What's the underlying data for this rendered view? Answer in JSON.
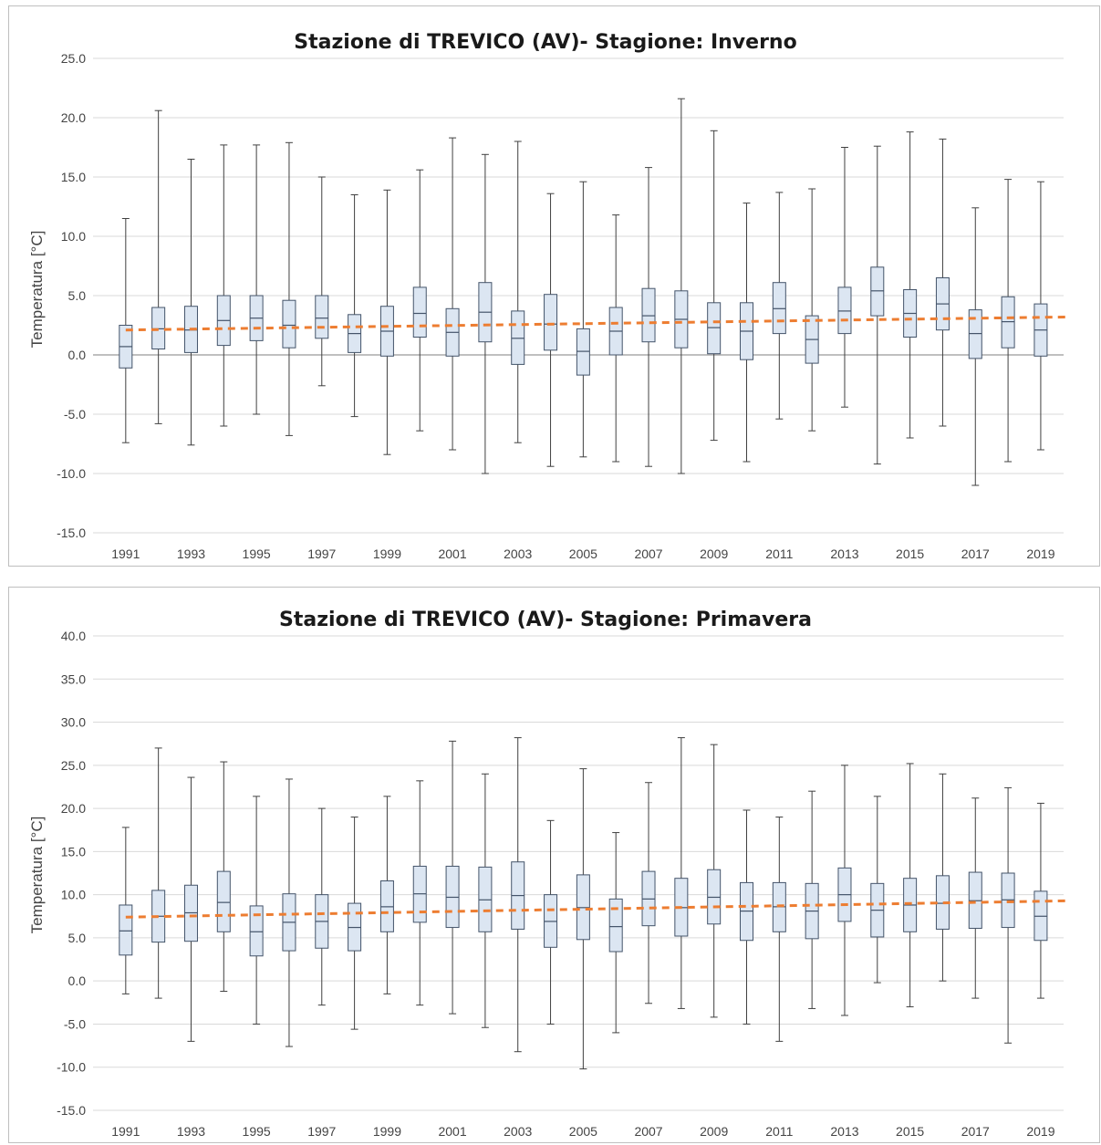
{
  "chart_data": [
    {
      "type": "box",
      "title": "Stazione di TREVICO (AV)- Stagione: Inverno",
      "xlabel": "",
      "ylabel": "Temperatura [°C]",
      "ylim": [
        -15,
        25
      ],
      "ytick_step": 5,
      "x_tick_labels": [
        "1991",
        "1993",
        "1995",
        "1997",
        "1999",
        "2001",
        "2003",
        "2005",
        "2007",
        "2009",
        "2011",
        "2013",
        "2015",
        "2017",
        "2019"
      ],
      "grid": "horizontal",
      "colors": {
        "box_fill": "#dce6f2",
        "box_edge": "#44546a",
        "whisker": "#404040",
        "trend": "#ed7d31",
        "grid": "#d9d9d9",
        "zero_line": "#7f7f7f"
      },
      "years": [
        1991,
        1992,
        1993,
        1994,
        1995,
        1996,
        1997,
        1998,
        1999,
        2000,
        2001,
        2002,
        2003,
        2004,
        2005,
        2006,
        2007,
        2008,
        2009,
        2010,
        2011,
        2012,
        2013,
        2014,
        2015,
        2016,
        2017,
        2018,
        2019
      ],
      "min": [
        -7.4,
        -5.8,
        -7.6,
        -6.0,
        -5.0,
        -6.8,
        -2.6,
        -5.2,
        -8.4,
        -6.4,
        -8.0,
        -10.0,
        -7.4,
        -9.4,
        -8.6,
        -9.0,
        -9.4,
        -10.0,
        -7.2,
        -9.0,
        -5.4,
        -6.4,
        -4.4,
        -9.2,
        -7.0,
        -6.0,
        -11.0,
        -9.0,
        -8.0
      ],
      "q1": [
        -1.1,
        0.5,
        0.2,
        0.8,
        1.2,
        0.6,
        1.4,
        0.2,
        -0.1,
        1.5,
        -0.1,
        1.1,
        -0.8,
        0.4,
        -1.7,
        0.0,
        1.1,
        0.6,
        0.1,
        -0.4,
        1.8,
        -0.7,
        1.8,
        3.3,
        1.5,
        2.1,
        -0.3,
        0.6,
        -0.1
      ],
      "median": [
        0.7,
        2.2,
        2.1,
        2.9,
        3.1,
        2.5,
        3.1,
        1.8,
        2.0,
        3.5,
        1.9,
        3.6,
        1.4,
        2.6,
        0.3,
        2.0,
        3.3,
        3.0,
        2.3,
        2.0,
        3.9,
        1.3,
        3.7,
        5.4,
        3.5,
        4.3,
        1.8,
        2.8,
        2.1
      ],
      "q3": [
        2.5,
        4.0,
        4.1,
        5.0,
        5.0,
        4.6,
        5.0,
        3.4,
        4.1,
        5.7,
        3.9,
        6.1,
        3.7,
        5.1,
        2.2,
        4.0,
        5.6,
        5.4,
        4.4,
        4.4,
        6.1,
        3.3,
        5.7,
        7.4,
        5.5,
        6.5,
        3.8,
        4.9,
        4.3
      ],
      "max": [
        11.5,
        20.6,
        16.5,
        17.7,
        17.7,
        17.9,
        15.0,
        13.5,
        13.9,
        15.6,
        18.3,
        16.9,
        18.0,
        13.6,
        14.6,
        11.8,
        15.8,
        21.6,
        18.9,
        12.8,
        13.7,
        14.0,
        17.5,
        17.6,
        18.8,
        18.2,
        12.4,
        14.8,
        14.6
      ],
      "trend": {
        "start": 2.1,
        "end": 3.2
      }
    },
    {
      "type": "box",
      "title": "Stazione di TREVICO (AV)- Stagione: Primavera",
      "xlabel": "",
      "ylabel": "Temperatura [°C]",
      "ylim": [
        -15,
        40
      ],
      "ytick_step": 5,
      "x_tick_labels": [
        "1991",
        "1993",
        "1995",
        "1997",
        "1999",
        "2001",
        "2003",
        "2005",
        "2007",
        "2009",
        "2011",
        "2013",
        "2015",
        "2017",
        "2019"
      ],
      "grid": "horizontal",
      "colors": {
        "box_fill": "#dce6f2",
        "box_edge": "#44546a",
        "whisker": "#404040",
        "trend": "#ed7d31",
        "grid": "#d9d9d9",
        "zero_line": "#d9d9d9"
      },
      "years": [
        1991,
        1992,
        1993,
        1994,
        1995,
        1996,
        1997,
        1998,
        1999,
        2000,
        2001,
        2002,
        2003,
        2004,
        2005,
        2006,
        2007,
        2008,
        2009,
        2010,
        2011,
        2012,
        2013,
        2014,
        2015,
        2016,
        2017,
        2018,
        2019
      ],
      "min": [
        -1.5,
        -2.0,
        -7.0,
        -1.2,
        -5.0,
        -7.6,
        -2.8,
        -5.6,
        -1.5,
        -2.8,
        -3.8,
        -5.4,
        -8.2,
        -5.0,
        -10.2,
        -6.0,
        -2.6,
        -3.2,
        -4.2,
        -5.0,
        -7.0,
        -3.2,
        -4.0,
        -0.2,
        -3.0,
        0.0,
        -2.0,
        -7.2,
        -2.0
      ],
      "q1": [
        3.0,
        4.5,
        4.6,
        5.7,
        2.9,
        3.5,
        3.8,
        3.5,
        5.7,
        6.8,
        6.2,
        5.7,
        6.0,
        3.9,
        4.8,
        3.4,
        6.4,
        5.2,
        6.6,
        4.7,
        5.7,
        4.9,
        6.9,
        5.1,
        5.7,
        6.0,
        6.1,
        6.2,
        4.7
      ],
      "median": [
        5.8,
        7.5,
        7.9,
        9.1,
        5.7,
        6.8,
        6.9,
        6.2,
        8.6,
        10.1,
        9.7,
        9.4,
        9.9,
        6.9,
        8.5,
        6.3,
        9.5,
        8.5,
        9.7,
        8.1,
        8.6,
        8.1,
        10.0,
        8.2,
        8.8,
        9.0,
        9.3,
        9.4,
        7.5
      ],
      "q3": [
        8.8,
        10.5,
        11.1,
        12.7,
        8.7,
        10.1,
        10.0,
        9.0,
        11.6,
        13.3,
        13.3,
        13.2,
        13.8,
        10.0,
        12.3,
        9.5,
        12.7,
        11.9,
        12.9,
        11.4,
        11.4,
        11.3,
        13.1,
        11.3,
        11.9,
        12.2,
        12.6,
        12.5,
        10.4
      ],
      "max": [
        17.8,
        27.0,
        23.6,
        25.4,
        21.4,
        23.4,
        20.0,
        19.0,
        21.4,
        23.2,
        27.8,
        24.0,
        28.2,
        18.6,
        24.6,
        17.2,
        23.0,
        28.2,
        27.4,
        19.8,
        19.0,
        22.0,
        25.0,
        21.4,
        25.2,
        24.0,
        21.2,
        22.4,
        20.6
      ],
      "trend": {
        "start": 7.4,
        "end": 9.3
      }
    }
  ]
}
